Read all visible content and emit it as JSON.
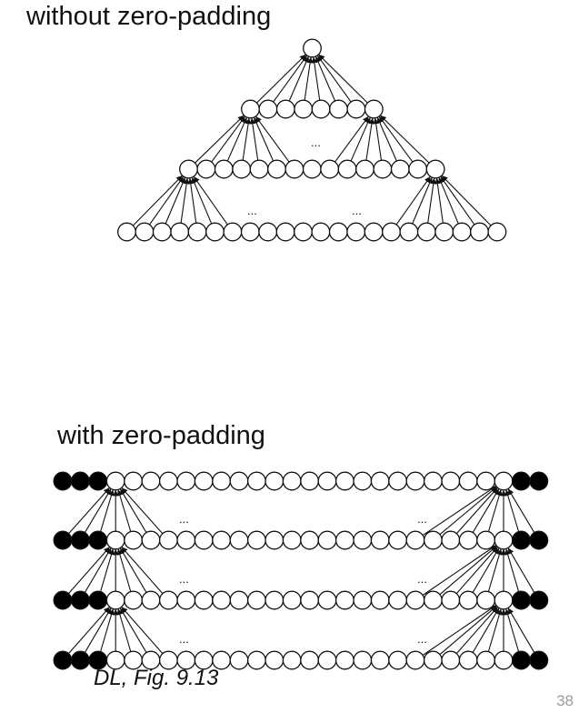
{
  "top_panel": {
    "title": "without zero-padding",
    "ellipsis": "..."
  },
  "bottom_panel": {
    "title": "with zero-padding",
    "ellipsis": "..."
  },
  "caption": "DL, Fig. 9.13",
  "page_number": "38",
  "colors": {
    "padding_node": "#000000",
    "unit_node": "#ffffff",
    "stroke": "#111111"
  }
}
